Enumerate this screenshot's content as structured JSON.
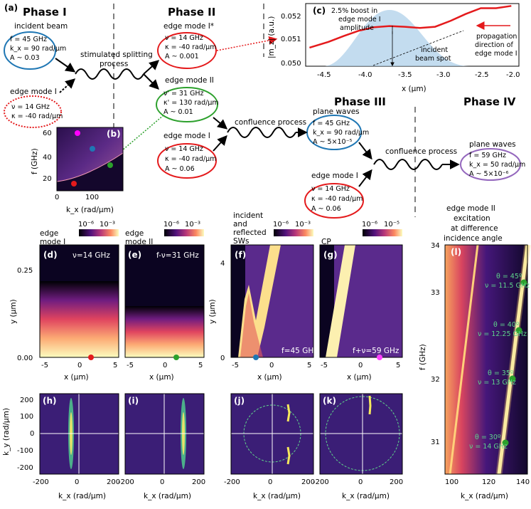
{
  "figure_label": "(a)",
  "phases": [
    "Phase I",
    "Phase II",
    "Phase III",
    "Phase IV"
  ],
  "process_labels": {
    "stimulated": [
      "stimulated splitting",
      "process"
    ],
    "confluence1": "confluence process",
    "confluence2": "confluence process"
  },
  "ellipses": {
    "incident_beam": {
      "title": "incident beam",
      "lines": [
        "f = 45 GHz",
        "k_x = 90 rad/μm",
        "A ~ 0.03"
      ],
      "color": "#1f77b4"
    },
    "edge_mode_I_left": {
      "title": "edge mode I",
      "lines": [
        "ν = 14 GHz",
        "κ = -40 rad/μm"
      ],
      "color": "#e41a1c"
    },
    "edge_mode_I_star": {
      "title": "edge mode I*",
      "lines": [
        "ν = 14 GHz",
        "κ = -40 rad/μm",
        "A ~ 0.001"
      ],
      "color": "#e41a1c"
    },
    "edge_mode_II": {
      "title": "edge mode II",
      "lines": [
        "ν' = 31 GHz",
        "κ' = 130 rad/μm",
        "A ~ 0.01"
      ],
      "color": "#2ca02c"
    },
    "edge_mode_I_mid": {
      "title": "edge mode I",
      "lines": [
        "ν = 14 GHz",
        "κ = -40 rad/μm",
        "A ~ 0.06"
      ],
      "color": "#e41a1c"
    },
    "plane_waves_III": {
      "title": "plane waves",
      "lines": [
        "f = 45 GHz",
        "k_x = 90 rad/μm",
        "A ~ 5×10⁻⁵"
      ],
      "color": "#1f77b4"
    },
    "edge_mode_I_III": {
      "title": "edge mode I",
      "lines": [
        "ν = 14 GHz",
        "κ = -40 rad/μm",
        "A ~ 0.06"
      ],
      "color": "#e41a1c"
    },
    "plane_waves_IV": {
      "title": "plane waves",
      "lines": [
        "f = 59 GHz",
        "k_x = 50 rad/μm",
        "A ~ 5×10⁻⁶"
      ],
      "color": "#9467bd"
    }
  },
  "panel_b": {
    "label": "(b)",
    "ylabel": "f (GHz)",
    "xlabel": "k_x (rad/μm)",
    "yticks": [
      "20",
      "40",
      "60"
    ],
    "xticks": [
      "0",
      "100"
    ]
  },
  "panel_c": {
    "label": "(c)",
    "annotation": [
      "2.5% boost in",
      "edge mode I",
      "amplitude"
    ],
    "incident_label": [
      "incident",
      "beam spot"
    ],
    "propagation_label": [
      "propagation",
      "direction of",
      "edge mode I"
    ],
    "ylabel": "|m_z| (a.u.)",
    "xlabel": "x (μm)",
    "yticks": [
      "0.050",
      "0.051",
      "0.052"
    ],
    "xticks": [
      "-4.5",
      "-4.0",
      "-3.5",
      "-3.0",
      "-2.5",
      "-2.0"
    ]
  },
  "chart_data": [
    {
      "type": "line",
      "panel": "c",
      "xlabel": "x (μm)",
      "ylabel": "|m_z| (a.u.)",
      "xlim": [
        -4.7,
        -1.9
      ],
      "ylim": [
        0.0499,
        0.0526
      ],
      "series": [
        {
          "x": [
            -4.65,
            -4.4,
            -4.2,
            -4.0,
            -3.8,
            -3.6,
            -3.4,
            -3.2,
            -3.0,
            -2.8,
            -2.6,
            -2.4,
            -2.2,
            -2.0
          ],
          "y": [
            0.0507,
            0.05095,
            0.0512,
            0.05143,
            0.05158,
            0.05163,
            0.0516,
            0.05155,
            0.0516,
            0.05185,
            0.05215,
            0.0524,
            0.0524,
            0.0525
          ]
        }
      ]
    }
  ],
  "colorbar_ticks": {
    "d": [
      "10⁻⁶",
      "10⁻³"
    ],
    "e": [
      "10⁻⁶",
      "10⁻³"
    ],
    "f": [
      "10⁻⁶",
      "10⁻³"
    ],
    "g": [
      "10⁻⁶",
      "10⁻⁵"
    ]
  },
  "row2": {
    "d": {
      "label": "(d)",
      "top": [
        "edge",
        "mode I"
      ],
      "note": "ν=14 GHz"
    },
    "e": {
      "label": "(e)",
      "top": [
        "edge",
        "mode II"
      ],
      "note": "f-ν=31 GHz"
    },
    "f": {
      "label": "(f)",
      "top": [
        "incident",
        "and",
        "reflected",
        "SWs"
      ],
      "note": "f=45 GHz"
    },
    "g": {
      "label": "(g)",
      "top": [
        "CP"
      ],
      "note": "f+ν=59 GHz"
    },
    "ylabel": "y (μm)",
    "xlabel": "x (μm)",
    "yticks_de": [
      "0.00",
      "0.25"
    ],
    "yticks_f": [
      "0",
      "4"
    ],
    "xticks": [
      "-5",
      "0",
      "5"
    ]
  },
  "row3": {
    "labels": [
      "(h)",
      "(i)",
      "(j)",
      "(k)"
    ],
    "ylabel": "k_y (rad/μm)",
    "xlabel": "k_x (rad/μm)",
    "yticks": [
      "200",
      "100",
      "0",
      "-100",
      "-200"
    ],
    "xticks": [
      "-200",
      "0",
      "200"
    ]
  },
  "panel_l": {
    "label": "(l)",
    "title": [
      "edge mode II",
      "excitation",
      "at difference",
      "incidence angle"
    ],
    "ylabel": "f (GHz)",
    "xlabel": "k_x (rad/μm)",
    "yticks": [
      "31",
      "32",
      "33",
      "34"
    ],
    "xticks": [
      "100",
      "120",
      "140"
    ],
    "points": [
      {
        "theta": "θ = 45º",
        "nu": "ν = 11.5 GHz"
      },
      {
        "theta": "θ = 40º",
        "nu": "ν = 12.25 GHz"
      },
      {
        "theta": "θ = 35º",
        "nu": "ν = 13 GHz"
      },
      {
        "theta": "θ = 30º",
        "nu": "ν = 14 GHz"
      }
    ]
  }
}
